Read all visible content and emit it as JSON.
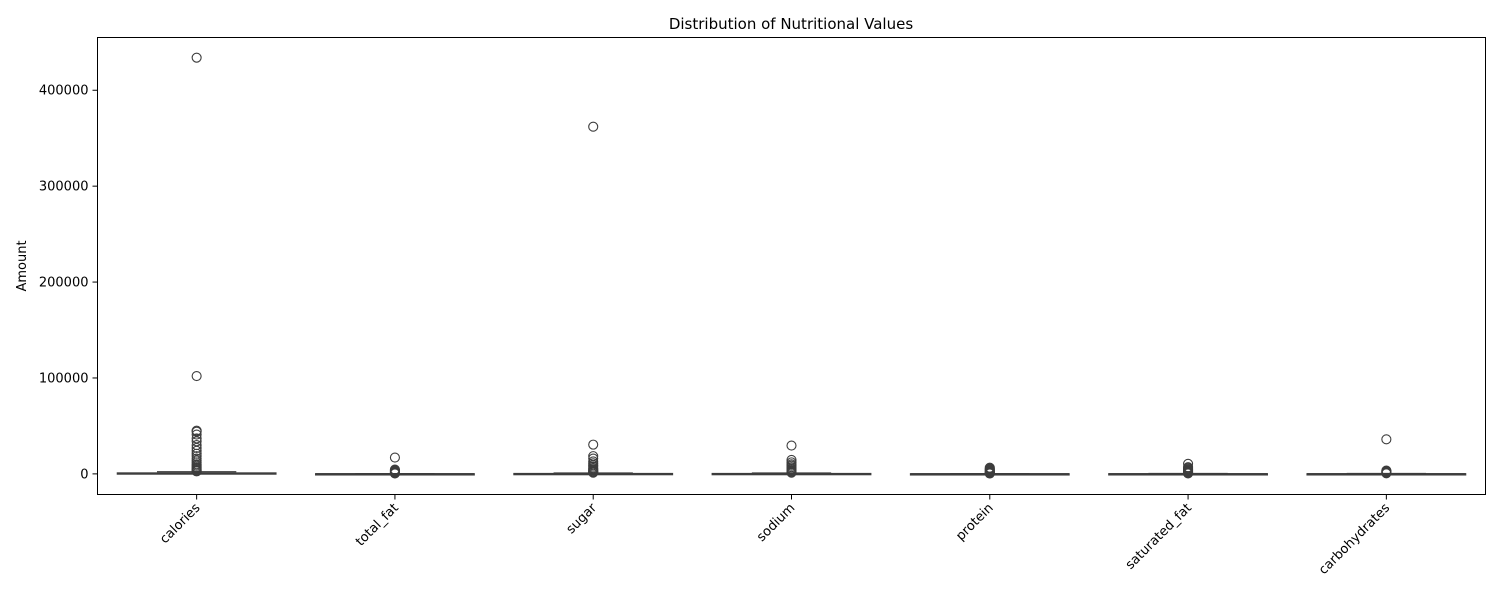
{
  "chart_data": {
    "type": "box",
    "title": "Distribution of Nutritional Values",
    "xlabel": "",
    "ylabel": "Amount",
    "ylim": [
      -21500,
      455000
    ],
    "yticks": [
      0,
      100000,
      200000,
      300000,
      400000
    ],
    "yticklabels": [
      "0",
      "100000",
      "200000",
      "300000",
      "400000"
    ],
    "grid": false,
    "box_color": "#ffffff",
    "line_color": "#3d3d3d",
    "categories": [
      "calories",
      "total_fat",
      "sugar",
      "sodium",
      "protein",
      "saturated_fat",
      "carbohydrates"
    ],
    "boxes": [
      {
        "q1": 200,
        "median": 450,
        "q3": 1000,
        "whisker_low": 0,
        "whisker_high": 2200,
        "outliers": [
          434000,
          102000,
          45000,
          44000,
          41000,
          37000,
          34000,
          30000,
          27000,
          24000,
          21000,
          18500,
          16000,
          14000,
          12000,
          10000,
          8500,
          7000,
          6000,
          5000,
          4000,
          3200,
          2600
        ]
      },
      {
        "q1": 20,
        "median": 60,
        "q3": 150,
        "whisker_low": 0,
        "whisker_high": 350,
        "outliers": [
          17000,
          4500,
          4000,
          3500,
          3000,
          2500,
          2000,
          1500,
          1000,
          700,
          450
        ]
      },
      {
        "q1": 30,
        "median": 110,
        "q3": 400,
        "whisker_low": 0,
        "whisker_high": 950,
        "outliers": [
          362000,
          30500,
          18500,
          16000,
          13000,
          11000,
          9000,
          7500,
          6000,
          4800,
          3800,
          3000,
          2200,
          1600,
          1200
        ]
      },
      {
        "q1": 30,
        "median": 120,
        "q3": 400,
        "whisker_low": 0,
        "whisker_high": 950,
        "outliers": [
          29500,
          14500,
          12000,
          10000,
          8500,
          7000,
          5500,
          4500,
          3500,
          2600,
          1800,
          1200
        ]
      },
      {
        "q1": 20,
        "median": 50,
        "q3": 130,
        "whisker_low": 0,
        "whisker_high": 300,
        "outliers": [
          6500,
          5500,
          4800,
          4000,
          3300,
          2600,
          2000,
          1500,
          1000,
          600,
          400
        ]
      },
      {
        "q1": 20,
        "median": 60,
        "q3": 160,
        "whisker_low": 0,
        "whisker_high": 380,
        "outliers": [
          10500,
          7000,
          6000,
          5000,
          4200,
          3400,
          2700,
          2000,
          1400,
          900,
          500
        ]
      },
      {
        "q1": 20,
        "median": 70,
        "q3": 160,
        "whisker_low": 0,
        "whisker_high": 380,
        "outliers": [
          36000,
          3500,
          3000,
          2500,
          2000,
          1500,
          1000,
          600
        ]
      }
    ]
  }
}
